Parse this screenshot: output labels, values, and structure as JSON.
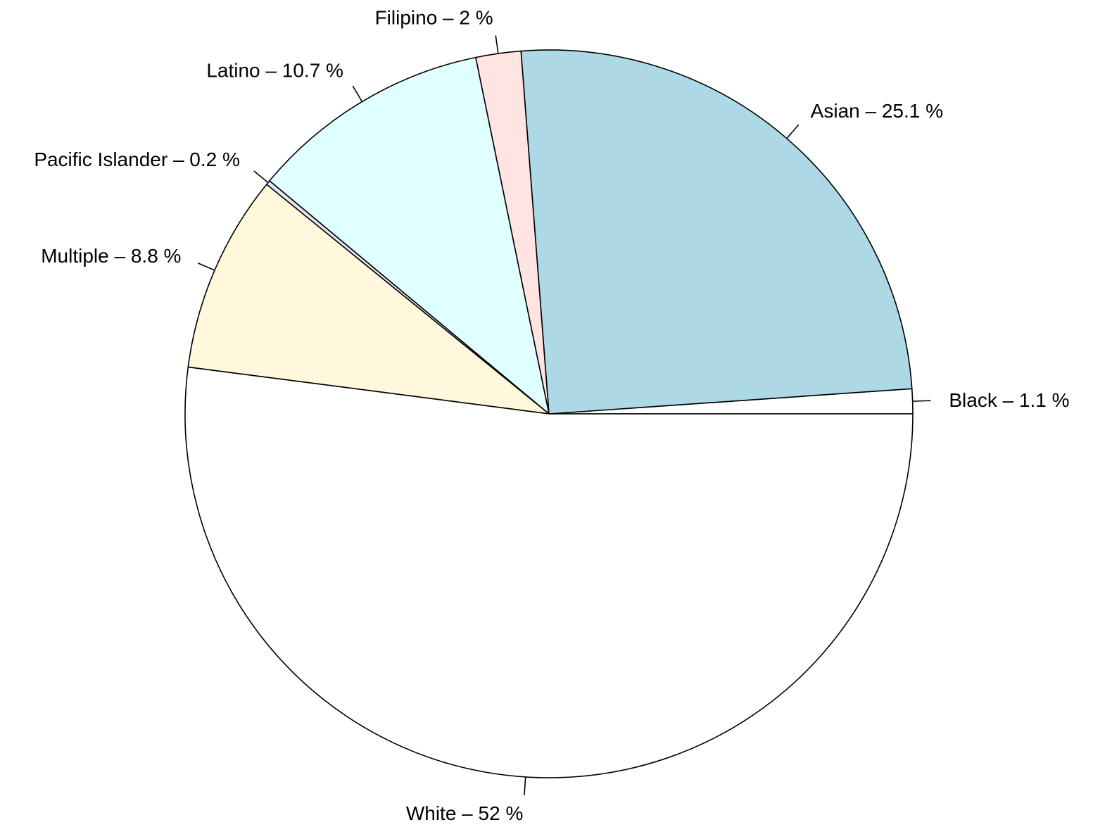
{
  "chart_data": {
    "type": "pie",
    "title": "",
    "slices": [
      {
        "label": "Black – 1.1 %",
        "category": "Black",
        "value": 1.1,
        "color": "#ffffff"
      },
      {
        "label": "Asian – 25.1 %",
        "category": "Asian",
        "value": 25.1,
        "color": "#add8e6"
      },
      {
        "label": "Filipino – 2 %",
        "category": "Filipino",
        "value": 2.0,
        "color": "#ffe4e1"
      },
      {
        "label": "Latino – 10.7 %",
        "category": "Latino",
        "value": 10.7,
        "color": "#e0ffff"
      },
      {
        "label": "Pacific Islander – 0.2 %",
        "category": "Pacific Islander",
        "value": 0.2,
        "color": "#e6e6fa"
      },
      {
        "label": "Multiple – 8.8 %",
        "category": "Multiple",
        "value": 8.8,
        "color": "#fff8dc"
      },
      {
        "label": "White – 52 %",
        "category": "White",
        "value": 52.0,
        "color": "#ffffff"
      }
    ],
    "start_angle": "3 o'clock",
    "direction": "counter-clockwise",
    "legend": "none"
  }
}
